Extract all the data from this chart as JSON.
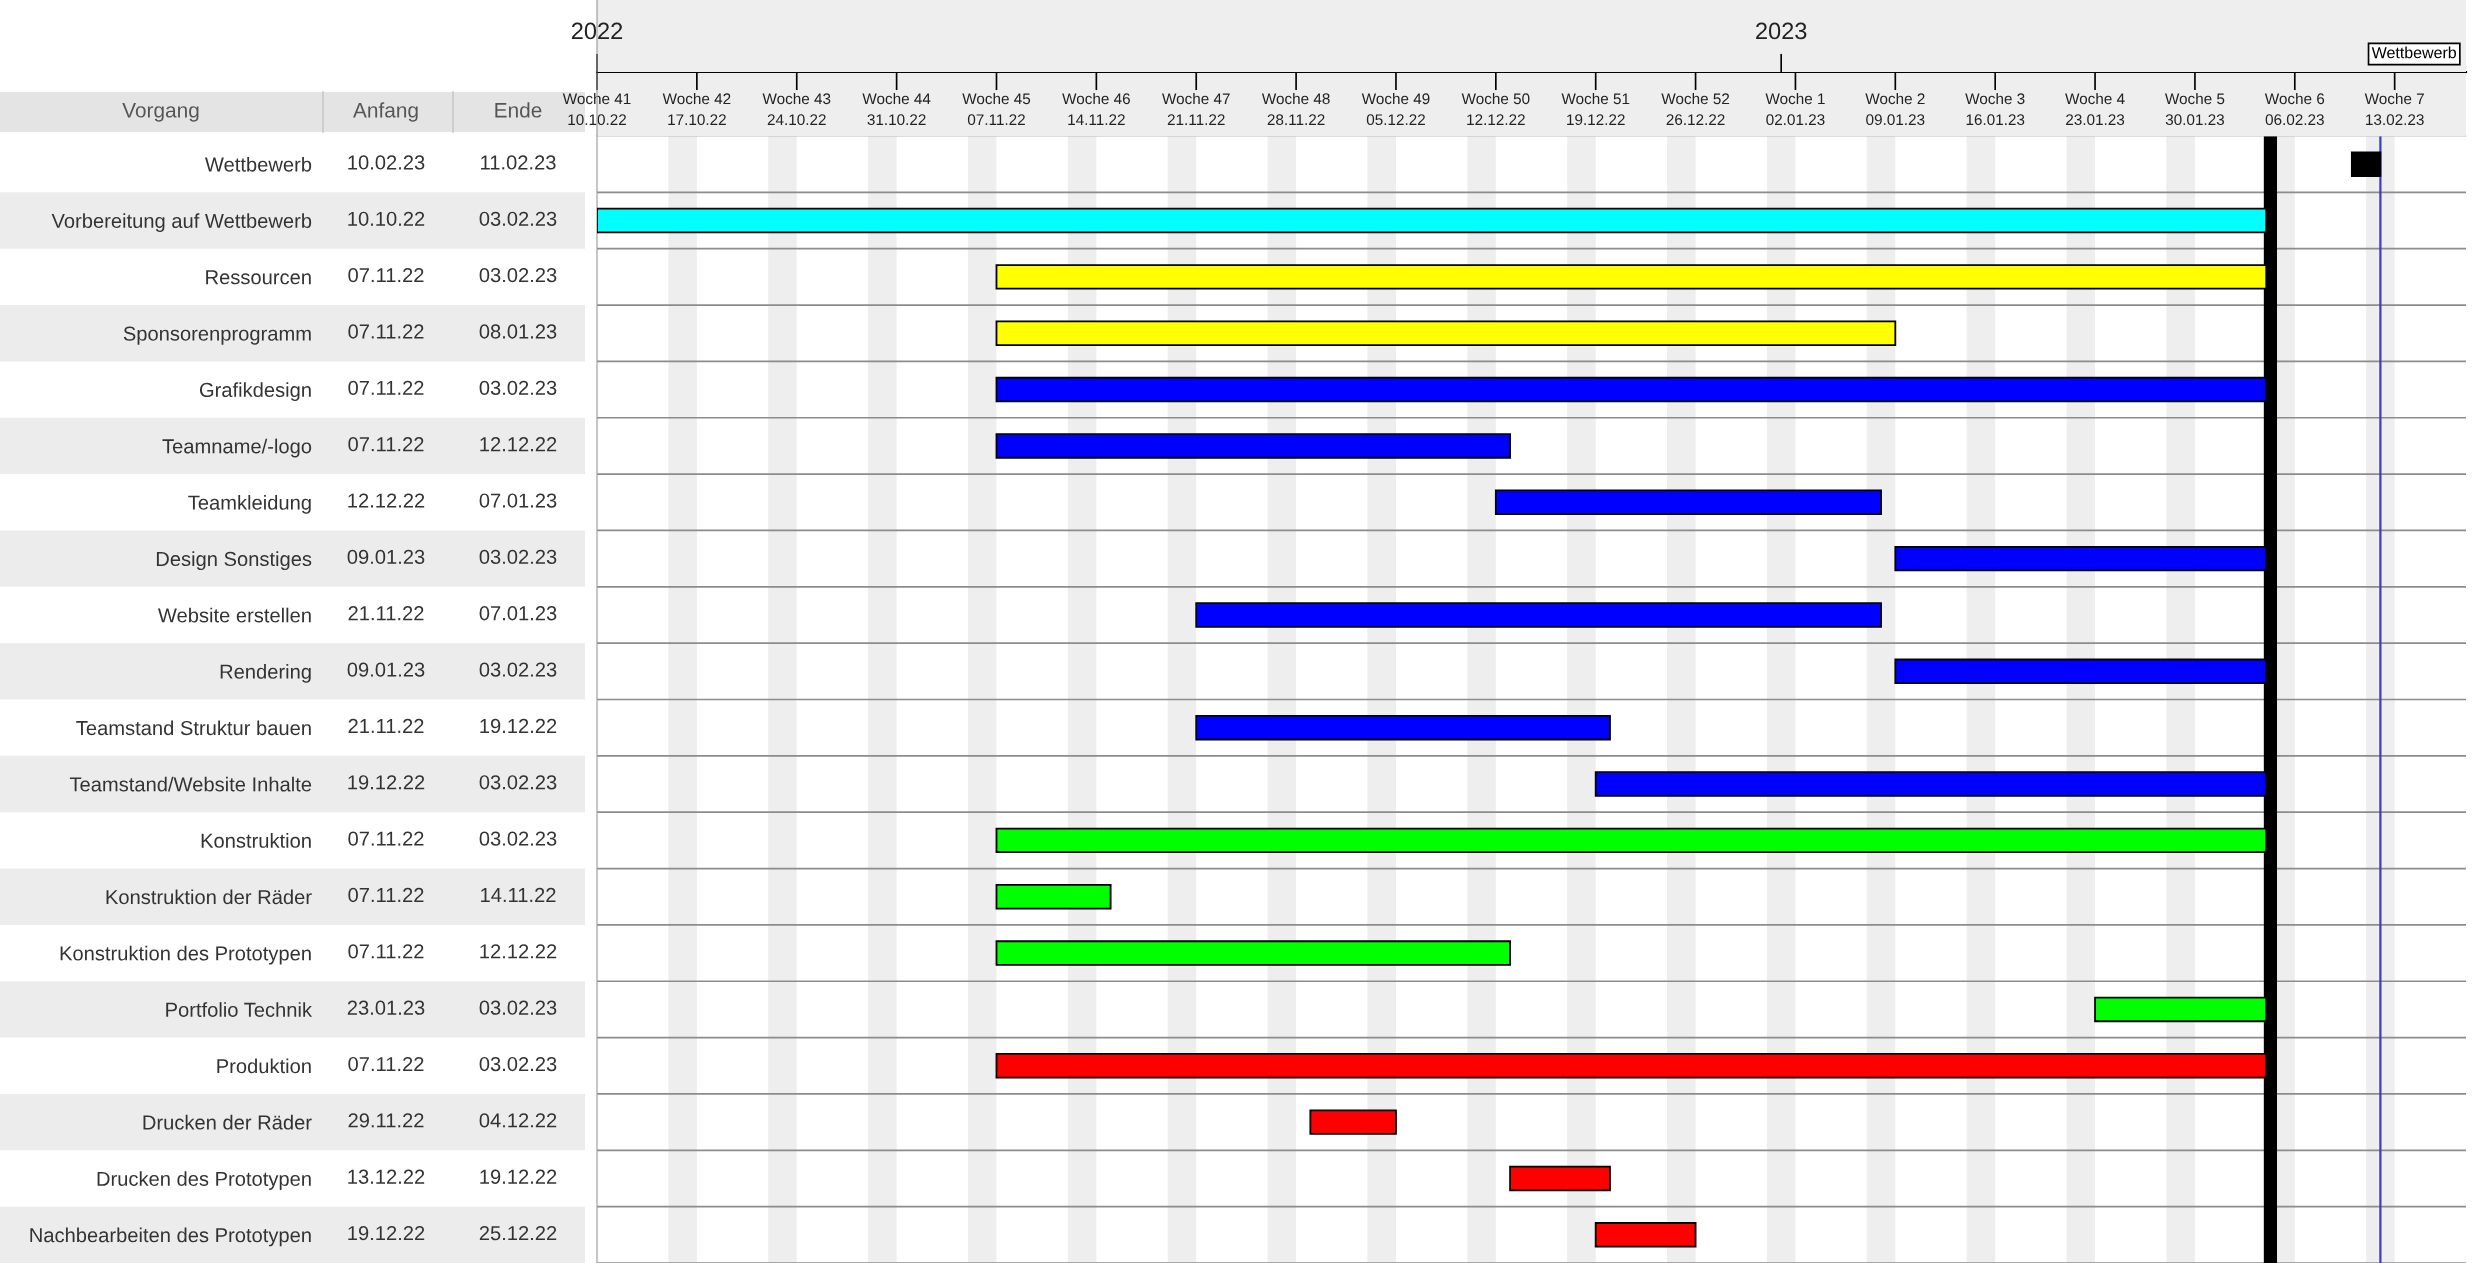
{
  "chart_data": {
    "type": "bar",
    "orientation": "horizontal",
    "categories": [
      "Wettbewerb",
      "Vorbereitung auf Wettbewerb",
      "Ressourcen",
      "Sponsorenprogramm",
      "Grafikdesign",
      "Teamname/-logo",
      "Teamkleidung",
      "Design Sonstiges",
      "Website erstellen",
      "Rendering",
      "Teamstand Struktur bauen",
      "Teamstand/Website Inhalte",
      "Konstruktion",
      "Konstruktion der Räder",
      "Konstruktion des Prototypen",
      "Portfolio Technik",
      "Produktion",
      "Drucken der Räder",
      "Drucken des Prototypen",
      "Nachbearbeiten des Prototypen"
    ],
    "base": [
      19398,
      19275,
      19303,
      19303,
      19303,
      19303,
      19338,
      19366,
      19317,
      19366,
      19317,
      19345,
      19303,
      19303,
      19303,
      19380,
      19303,
      19325,
      19339,
      19345
    ],
    "values": [
      2,
      117,
      89,
      63,
      89,
      36,
      27,
      26,
      48,
      26,
      29,
      47,
      89,
      8,
      36,
      12,
      89,
      6,
      7,
      7
    ],
    "colors": [
      "#000000",
      "#00ffff",
      "#ffff00",
      "#ffff00",
      "#0000ff",
      "#0000ff",
      "#0000ff",
      "#0000ff",
      "#0000ff",
      "#0000ff",
      "#0000ff",
      "#0000ff",
      "#00ff00",
      "#00ff00",
      "#00ff00",
      "#00ff00",
      "#ff0000",
      "#ff0000",
      "#ff0000",
      "#ff0000"
    ],
    "xlim": [
      "2022-10-10",
      "2023-02-18"
    ],
    "xticks": [
      {
        "value": "2022-10-10",
        "label": "Woche 41\n10.10.22"
      },
      {
        "value": "2022-10-17",
        "label": "Woche 42\n17.10.22"
      },
      {
        "value": "2022-10-24",
        "label": "Woche 43\n24.10.22"
      },
      {
        "value": "2022-10-31",
        "label": "Woche 44\n31.10.22"
      },
      {
        "value": "2022-11-07",
        "label": "Woche 45\n07.11.22"
      },
      {
        "value": "2022-11-14",
        "label": "Woche 46\n14.11.22"
      },
      {
        "value": "2022-11-21",
        "label": "Woche 47\n21.11.22"
      },
      {
        "value": "2022-11-28",
        "label": "Woche 48\n28.11.22"
      },
      {
        "value": "2022-12-05",
        "label": "Woche 49\n05.12.22"
      },
      {
        "value": "2022-12-12",
        "label": "Woche 50\n12.12.22"
      },
      {
        "value": "2022-12-19",
        "label": "Woche 51\n19.12.22"
      },
      {
        "value": "2022-12-26",
        "label": "Woche 52\n26.12.22"
      },
      {
        "value": "2023-01-02",
        "label": "Woche 1\n02.01.23"
      },
      {
        "value": "2023-01-09",
        "label": "Woche 2\n09.01.23"
      },
      {
        "value": "2023-01-16",
        "label": "Woche 3\n16.01.23"
      },
      {
        "value": "2023-01-23",
        "label": "Woche 4\n23.01.23"
      },
      {
        "value": "2023-01-30",
        "label": "Woche 5\n30.01.23"
      },
      {
        "value": "2023-02-06",
        "label": "Woche 6\n06.02.23"
      },
      {
        "value": "2023-02-13",
        "label": "Woche 7\n13.02.23"
      }
    ],
    "x2lim": [
      "2022-10-10",
      "2023-02-18"
    ],
    "x2ticks": [
      {
        "value": "2022-10-10",
        "label": "2022"
      },
      {
        "value": "2023-01-01",
        "label": "2023"
      }
    ],
    "grid": "y",
    "bands": [
      {
        "axis": "x",
        "from": "2022-10-15",
        "to": "2022-10-17",
        "color": "#eeeeee"
      },
      {
        "axis": "x",
        "from": "2022-10-22",
        "to": "2022-10-24",
        "color": "#eeeeee"
      },
      {
        "axis": "x",
        "from": "2022-10-29",
        "to": "2022-10-31",
        "color": "#eeeeee"
      },
      {
        "axis": "x",
        "from": "2022-11-05",
        "to": "2022-11-07",
        "color": "#eeeeee"
      },
      {
        "axis": "x",
        "from": "2022-11-12",
        "to": "2022-11-14",
        "color": "#eeeeee"
      },
      {
        "axis": "x",
        "from": "2022-11-19",
        "to": "2022-11-21",
        "color": "#eeeeee"
      },
      {
        "axis": "x",
        "from": "2022-11-26",
        "to": "2022-11-28",
        "color": "#eeeeee"
      },
      {
        "axis": "x",
        "from": "2022-12-03",
        "to": "2022-12-05",
        "color": "#eeeeee"
      },
      {
        "axis": "x",
        "from": "2022-12-10",
        "to": "2022-12-12",
        "color": "#eeeeee"
      },
      {
        "axis": "x",
        "from": "2022-12-17",
        "to": "2022-12-19",
        "color": "#eeeeee"
      },
      {
        "axis": "x",
        "from": "2022-12-24",
        "to": "2022-12-26",
        "color": "#eeeeee"
      },
      {
        "axis": "x",
        "from": "2022-12-31",
        "to": "2023-01-02",
        "color": "#eeeeee"
      },
      {
        "axis": "x",
        "from": "2023-01-07",
        "to": "2023-01-09",
        "color": "#eeeeee"
      },
      {
        "axis": "x",
        "from": "2023-01-14",
        "to": "2023-01-16",
        "color": "#eeeeee"
      },
      {
        "axis": "x",
        "from": "2023-01-21",
        "to": "2023-01-23",
        "color": "#eeeeee"
      },
      {
        "axis": "x",
        "from": "2023-01-28",
        "to": "2023-01-30",
        "color": "#eeeeee"
      },
      {
        "axis": "x",
        "from": "2023-02-04",
        "to": "2023-02-06",
        "color": "#eeeeee"
      },
      {
        "axis": "x",
        "from": "2023-02-11",
        "to": "2023-02-13",
        "color": "#eeeeee"
      }
    ],
    "ref_lines": [
      {
        "axis": "x",
        "value": "2023-02-04T07:00",
        "color": "#000000"
      },
      {
        "axis": "x",
        "value": "2023-02-12",
        "color": "#3c3cc8"
      }
    ],
    "annotations": [
      "Vorgang",
      "Anfang",
      "Ende",
      "10.02.23",
      "11.02.23",
      "10.10.22",
      "03.02.23",
      "07.11.22",
      "03.02.23",
      "07.11.22",
      "08.01.23",
      "07.11.22",
      "03.02.23",
      "07.11.22",
      "12.12.22",
      "12.12.22",
      "07.01.23",
      "09.01.23",
      "03.02.23",
      "21.11.22",
      "07.01.23",
      "09.01.23",
      "03.02.23",
      "21.11.22",
      "19.12.22",
      "19.12.22",
      "03.02.23",
      "07.11.22",
      "03.02.23",
      "07.11.22",
      "14.11.22",
      "07.11.22",
      "12.12.22",
      "23.01.23",
      "03.02.23",
      "07.11.22",
      "03.02.23",
      "29.11.22",
      "04.12.22",
      "13.12.22",
      "19.12.22",
      "19.12.22",
      "25.12.22",
      "Wettbewerb"
    ]
  }
}
